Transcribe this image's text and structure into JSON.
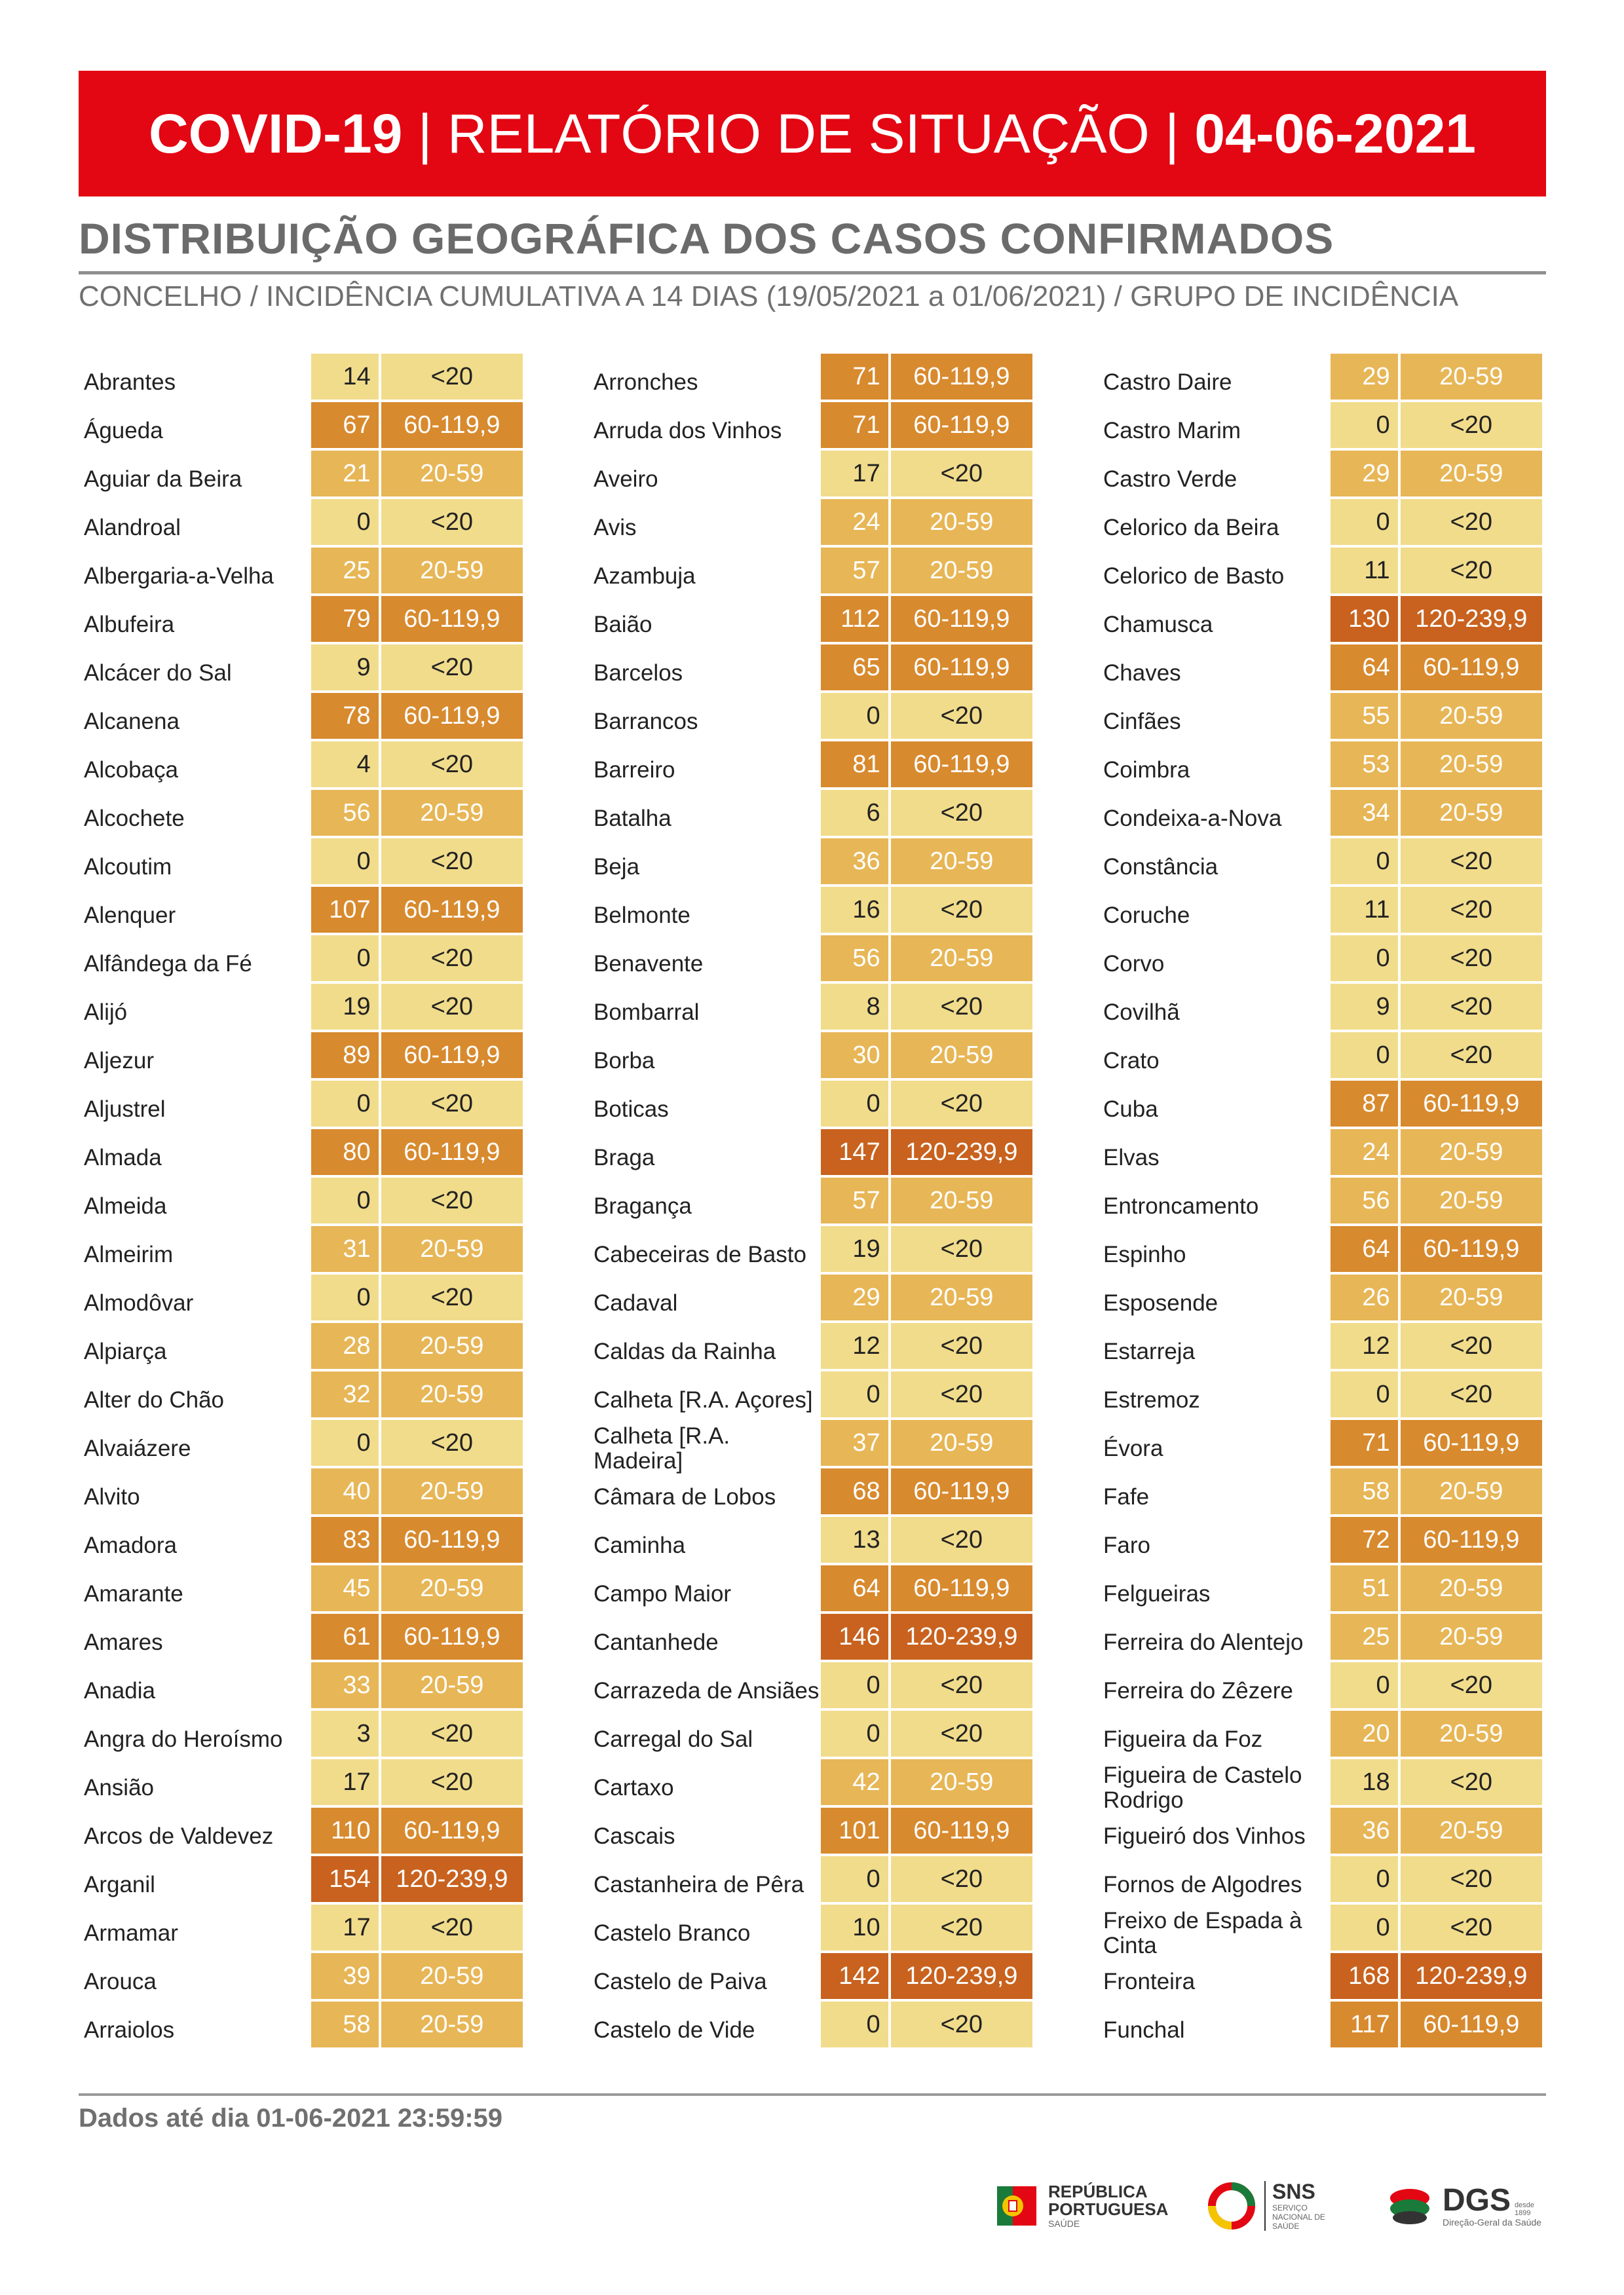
{
  "header": {
    "part1": "COVID-19",
    "sep1": " | ",
    "part2": "RELATÓRIO DE SITUAÇÃO",
    "sep2": " | ",
    "part3": "04-06-2021"
  },
  "section": {
    "title": "DISTRIBUIÇÃO GEOGRÁFICA DOS CASOS CONFIRMADOS",
    "subtitle": "CONCELHO / INCIDÊNCIA CUMULATIVA A 14 DIAS (19/05/2021 a 01/06/2021) / GRUPO DE INCIDÊNCIA"
  },
  "colors": {
    "banner": "#e30613",
    "group_lt20": "#f1dc8b",
    "group_20_59": "#e7b656",
    "group_60_119": "#d88a2e",
    "group_120_239": "#c8621e"
  },
  "columns": [
    [
      {
        "name": "Abrantes",
        "value": "14",
        "group": "<20"
      },
      {
        "name": "Águeda",
        "value": "67",
        "group": "60-119,9"
      },
      {
        "name": "Aguiar da Beira",
        "value": "21",
        "group": "20-59"
      },
      {
        "name": "Alandroal",
        "value": "0",
        "group": "<20"
      },
      {
        "name": "Albergaria-a-Velha",
        "value": "25",
        "group": "20-59"
      },
      {
        "name": "Albufeira",
        "value": "79",
        "group": "60-119,9"
      },
      {
        "name": "Alcácer do Sal",
        "value": "9",
        "group": "<20"
      },
      {
        "name": "Alcanena",
        "value": "78",
        "group": "60-119,9"
      },
      {
        "name": "Alcobaça",
        "value": "4",
        "group": "<20"
      },
      {
        "name": "Alcochete",
        "value": "56",
        "group": "20-59"
      },
      {
        "name": "Alcoutim",
        "value": "0",
        "group": "<20"
      },
      {
        "name": "Alenquer",
        "value": "107",
        "group": "60-119,9"
      },
      {
        "name": "Alfândega da Fé",
        "value": "0",
        "group": "<20"
      },
      {
        "name": "Alijó",
        "value": "19",
        "group": "<20"
      },
      {
        "name": "Aljezur",
        "value": "89",
        "group": "60-119,9"
      },
      {
        "name": "Aljustrel",
        "value": "0",
        "group": "<20"
      },
      {
        "name": "Almada",
        "value": "80",
        "group": "60-119,9"
      },
      {
        "name": "Almeida",
        "value": "0",
        "group": "<20"
      },
      {
        "name": "Almeirim",
        "value": "31",
        "group": "20-59"
      },
      {
        "name": "Almodôvar",
        "value": "0",
        "group": "<20"
      },
      {
        "name": "Alpiarça",
        "value": "28",
        "group": "20-59"
      },
      {
        "name": "Alter do Chão",
        "value": "32",
        "group": "20-59"
      },
      {
        "name": "Alvaiázere",
        "value": "0",
        "group": "<20"
      },
      {
        "name": "Alvito",
        "value": "40",
        "group": "20-59"
      },
      {
        "name": "Amadora",
        "value": "83",
        "group": "60-119,9"
      },
      {
        "name": "Amarante",
        "value": "45",
        "group": "20-59"
      },
      {
        "name": "Amares",
        "value": "61",
        "group": "60-119,9"
      },
      {
        "name": "Anadia",
        "value": "33",
        "group": "20-59"
      },
      {
        "name": "Angra do Heroísmo",
        "value": "3",
        "group": "<20"
      },
      {
        "name": "Ansião",
        "value": "17",
        "group": "<20"
      },
      {
        "name": "Arcos de Valdevez",
        "value": "110",
        "group": "60-119,9"
      },
      {
        "name": "Arganil",
        "value": "154",
        "group": "120-239,9"
      },
      {
        "name": "Armamar",
        "value": "17",
        "group": "<20"
      },
      {
        "name": "Arouca",
        "value": "39",
        "group": "20-59"
      },
      {
        "name": "Arraiolos",
        "value": "58",
        "group": "20-59"
      }
    ],
    [
      {
        "name": "Arronches",
        "value": "71",
        "group": "60-119,9"
      },
      {
        "name": "Arruda dos Vinhos",
        "value": "71",
        "group": "60-119,9"
      },
      {
        "name": "Aveiro",
        "value": "17",
        "group": "<20"
      },
      {
        "name": "Avis",
        "value": "24",
        "group": "20-59"
      },
      {
        "name": "Azambuja",
        "value": "57",
        "group": "20-59"
      },
      {
        "name": "Baião",
        "value": "112",
        "group": "60-119,9"
      },
      {
        "name": "Barcelos",
        "value": "65",
        "group": "60-119,9"
      },
      {
        "name": "Barrancos",
        "value": "0",
        "group": "<20"
      },
      {
        "name": "Barreiro",
        "value": "81",
        "group": "60-119,9"
      },
      {
        "name": "Batalha",
        "value": "6",
        "group": "<20"
      },
      {
        "name": "Beja",
        "value": "36",
        "group": "20-59"
      },
      {
        "name": "Belmonte",
        "value": "16",
        "group": "<20"
      },
      {
        "name": "Benavente",
        "value": "56",
        "group": "20-59"
      },
      {
        "name": "Bombarral",
        "value": "8",
        "group": "<20"
      },
      {
        "name": "Borba",
        "value": "30",
        "group": "20-59"
      },
      {
        "name": "Boticas",
        "value": "0",
        "group": "<20"
      },
      {
        "name": "Braga",
        "value": "147",
        "group": "120-239,9"
      },
      {
        "name": "Bragança",
        "value": "57",
        "group": "20-59"
      },
      {
        "name": "Cabeceiras de Basto",
        "value": "19",
        "group": "<20"
      },
      {
        "name": "Cadaval",
        "value": "29",
        "group": "20-59"
      },
      {
        "name": "Caldas da Rainha",
        "value": "12",
        "group": "<20"
      },
      {
        "name": "Calheta [R.A. Açores]",
        "value": "0",
        "group": "<20"
      },
      {
        "name": "Calheta [R.A. Madeira]",
        "value": "37",
        "group": "20-59"
      },
      {
        "name": "Câmara de Lobos",
        "value": "68",
        "group": "60-119,9"
      },
      {
        "name": "Caminha",
        "value": "13",
        "group": "<20"
      },
      {
        "name": "Campo Maior",
        "value": "64",
        "group": "60-119,9"
      },
      {
        "name": "Cantanhede",
        "value": "146",
        "group": "120-239,9"
      },
      {
        "name": "Carrazeda de Ansiães",
        "value": "0",
        "group": "<20"
      },
      {
        "name": "Carregal do Sal",
        "value": "0",
        "group": "<20"
      },
      {
        "name": "Cartaxo",
        "value": "42",
        "group": "20-59"
      },
      {
        "name": "Cascais",
        "value": "101",
        "group": "60-119,9"
      },
      {
        "name": "Castanheira de Pêra",
        "value": "0",
        "group": "<20"
      },
      {
        "name": "Castelo Branco",
        "value": "10",
        "group": "<20"
      },
      {
        "name": "Castelo de Paiva",
        "value": "142",
        "group": "120-239,9"
      },
      {
        "name": "Castelo de Vide",
        "value": "0",
        "group": "<20"
      }
    ],
    [
      {
        "name": "Castro Daire",
        "value": "29",
        "group": "20-59"
      },
      {
        "name": "Castro Marim",
        "value": "0",
        "group": "<20"
      },
      {
        "name": "Castro Verde",
        "value": "29",
        "group": "20-59"
      },
      {
        "name": "Celorico da Beira",
        "value": "0",
        "group": "<20"
      },
      {
        "name": "Celorico de Basto",
        "value": "11",
        "group": "<20"
      },
      {
        "name": "Chamusca",
        "value": "130",
        "group": "120-239,9"
      },
      {
        "name": "Chaves",
        "value": "64",
        "group": "60-119,9"
      },
      {
        "name": "Cinfães",
        "value": "55",
        "group": "20-59"
      },
      {
        "name": "Coimbra",
        "value": "53",
        "group": "20-59"
      },
      {
        "name": "Condeixa-a-Nova",
        "value": "34",
        "group": "20-59"
      },
      {
        "name": "Constância",
        "value": "0",
        "group": "<20"
      },
      {
        "name": "Coruche",
        "value": "11",
        "group": "<20"
      },
      {
        "name": "Corvo",
        "value": "0",
        "group": "<20"
      },
      {
        "name": "Covilhã",
        "value": "9",
        "group": "<20"
      },
      {
        "name": "Crato",
        "value": "0",
        "group": "<20"
      },
      {
        "name": "Cuba",
        "value": "87",
        "group": "60-119,9"
      },
      {
        "name": "Elvas",
        "value": "24",
        "group": "20-59"
      },
      {
        "name": "Entroncamento",
        "value": "56",
        "group": "20-59"
      },
      {
        "name": "Espinho",
        "value": "64",
        "group": "60-119,9"
      },
      {
        "name": "Esposende",
        "value": "26",
        "group": "20-59"
      },
      {
        "name": "Estarreja",
        "value": "12",
        "group": "<20"
      },
      {
        "name": "Estremoz",
        "value": "0",
        "group": "<20"
      },
      {
        "name": "Évora",
        "value": "71",
        "group": "60-119,9"
      },
      {
        "name": "Fafe",
        "value": "58",
        "group": "20-59"
      },
      {
        "name": "Faro",
        "value": "72",
        "group": "60-119,9"
      },
      {
        "name": "Felgueiras",
        "value": "51",
        "group": "20-59"
      },
      {
        "name": "Ferreira do Alentejo",
        "value": "25",
        "group": "20-59"
      },
      {
        "name": "Ferreira do Zêzere",
        "value": "0",
        "group": "<20"
      },
      {
        "name": "Figueira da Foz",
        "value": "20",
        "group": "20-59"
      },
      {
        "name": "Figueira de Castelo Rodrigo",
        "value": "18",
        "group": "<20"
      },
      {
        "name": "Figueiró dos Vinhos",
        "value": "36",
        "group": "20-59"
      },
      {
        "name": "Fornos de Algodres",
        "value": "0",
        "group": "<20"
      },
      {
        "name": "Freixo de Espada à Cinta",
        "value": "0",
        "group": "<20"
      },
      {
        "name": "Fronteira",
        "value": "168",
        "group": "120-239,9"
      },
      {
        "name": "Funchal",
        "value": "117",
        "group": "60-119,9"
      }
    ]
  ],
  "footer": {
    "data_note": "Dados até dia 01-06-2021 23:59:59"
  },
  "logos": {
    "republica_line1": "REPÚBLICA",
    "republica_line2": "PORTUGUESA",
    "republica_small": "SAÚDE",
    "sns_main": "SNS",
    "sns_small": "SERVIÇO NACIONAL DE SAÚDE",
    "dgs_main": "DGS",
    "dgs_small": "Direção-Geral da Saúde",
    "dgs_since": "desde 1899"
  }
}
